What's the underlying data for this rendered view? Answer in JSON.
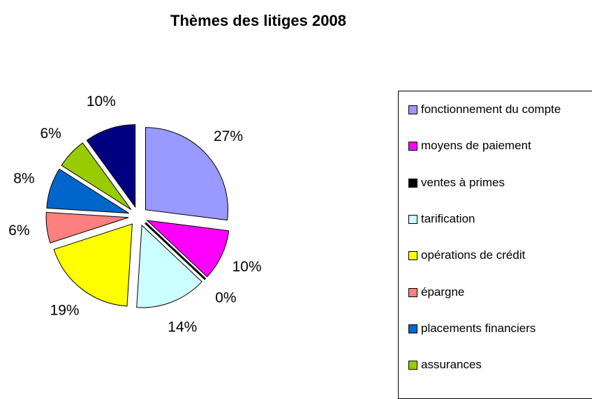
{
  "chart_data": {
    "type": "pie",
    "title": "Thèmes des litiges 2008",
    "categories": [
      "fonctionnement du compte",
      "moyens de paiement",
      "ventes à primes",
      "tarification",
      "opérations de crédit",
      "épargne",
      "placements financiers",
      "assurances",
      null
    ],
    "values": [
      27,
      10,
      0,
      14,
      19,
      6,
      8,
      6,
      10
    ],
    "value_labels": [
      "27%",
      "10%",
      "0%",
      "14%",
      "19%",
      "6%",
      "8%",
      "6%",
      "10%"
    ],
    "colors": [
      "#9999ff",
      "#ff00ff",
      "#000000",
      "#ccffff",
      "#ffff00",
      "#ff8080",
      "#0066cc",
      "#99cc00",
      "#000080"
    ]
  }
}
